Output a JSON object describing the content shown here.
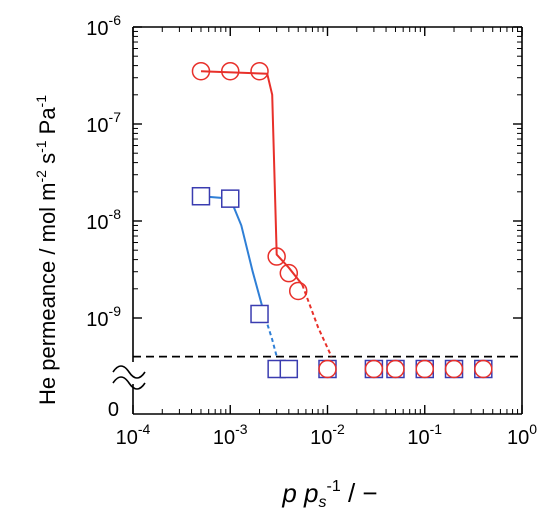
{
  "chart_data": {
    "type": "scatter",
    "title": "",
    "xlabel_parts": [
      "p p",
      "s",
      "-1",
      " / −"
    ],
    "ylabel_parts": [
      "He permeance / mol m",
      "-2",
      " s",
      "-1",
      " Pa",
      "-1"
    ],
    "x_scale": "log",
    "y_scale": "log",
    "xlim": [
      0.0001,
      1
    ],
    "ylim": [
      1e-10,
      1e-06
    ],
    "x_ticks": [
      {
        "base": "10",
        "exp": "-4",
        "v": 0.0001
      },
      {
        "base": "10",
        "exp": "-3",
        "v": 0.001
      },
      {
        "base": "10",
        "exp": "-2",
        "v": 0.01
      },
      {
        "base": "10",
        "exp": "-1",
        "v": 0.1
      },
      {
        "base": "10",
        "exp": "0",
        "v": 1
      }
    ],
    "y_ticks": [
      {
        "base": "10",
        "exp": "-6",
        "v": 1e-06
      },
      {
        "base": "10",
        "exp": "-7",
        "v": 1e-07
      },
      {
        "base": "10",
        "exp": "-8",
        "v": 1e-08
      },
      {
        "base": "10",
        "exp": "-9",
        "v": 1e-09
      }
    ],
    "y_zero_label": "0",
    "axis_break": true,
    "detection_limit": 4e-10,
    "series": [
      {
        "marker": "circle",
        "color": "#e8302a",
        "points": [
          {
            "x": 0.0005,
            "y": 3.5e-07
          },
          {
            "x": 0.001,
            "y": 3.5e-07
          },
          {
            "x": 0.002,
            "y": 3.5e-07
          },
          {
            "x": 0.003,
            "y": 4.3e-09
          },
          {
            "x": 0.004,
            "y": 2.9e-09
          },
          {
            "x": 0.005,
            "y": 1.9e-09
          }
        ],
        "zero_points": [
          0.01,
          0.03,
          0.05,
          0.1,
          0.2,
          0.4
        ],
        "fit_solid": [
          [
            0.0005,
            3.5e-07
          ],
          [
            0.0024,
            3.3e-07
          ],
          [
            0.0027,
            2e-07
          ],
          [
            0.003,
            4.5e-09
          ],
          [
            0.004,
            3.3e-09
          ],
          [
            0.0055,
            2.2e-09
          ]
        ],
        "fit_dashed": [
          [
            0.0055,
            2.2e-09
          ],
          [
            0.008,
            8e-10
          ],
          [
            0.011,
            4e-10
          ]
        ]
      },
      {
        "marker": "square",
        "color": "#3a3cb0",
        "line_color": "#2f7fd6",
        "points": [
          {
            "x": 0.0005,
            "y": 1.8e-08
          },
          {
            "x": 0.001,
            "y": 1.7e-08
          },
          {
            "x": 0.002,
            "y": 1.1e-09
          }
        ],
        "zero_points": [
          0.003,
          0.004,
          0.01,
          0.03,
          0.05,
          0.1,
          0.2,
          0.4
        ],
        "fit_solid": [
          [
            0.0005,
            1.8e-08
          ],
          [
            0.001,
            1.7e-08
          ],
          [
            0.0013,
            9e-09
          ],
          [
            0.0017,
            3e-09
          ],
          [
            0.0023,
            1e-09
          ]
        ],
        "fit_dashed": [
          [
            0.0023,
            1e-09
          ],
          [
            0.0027,
            6e-10
          ],
          [
            0.003,
            4e-10
          ]
        ]
      }
    ]
  }
}
